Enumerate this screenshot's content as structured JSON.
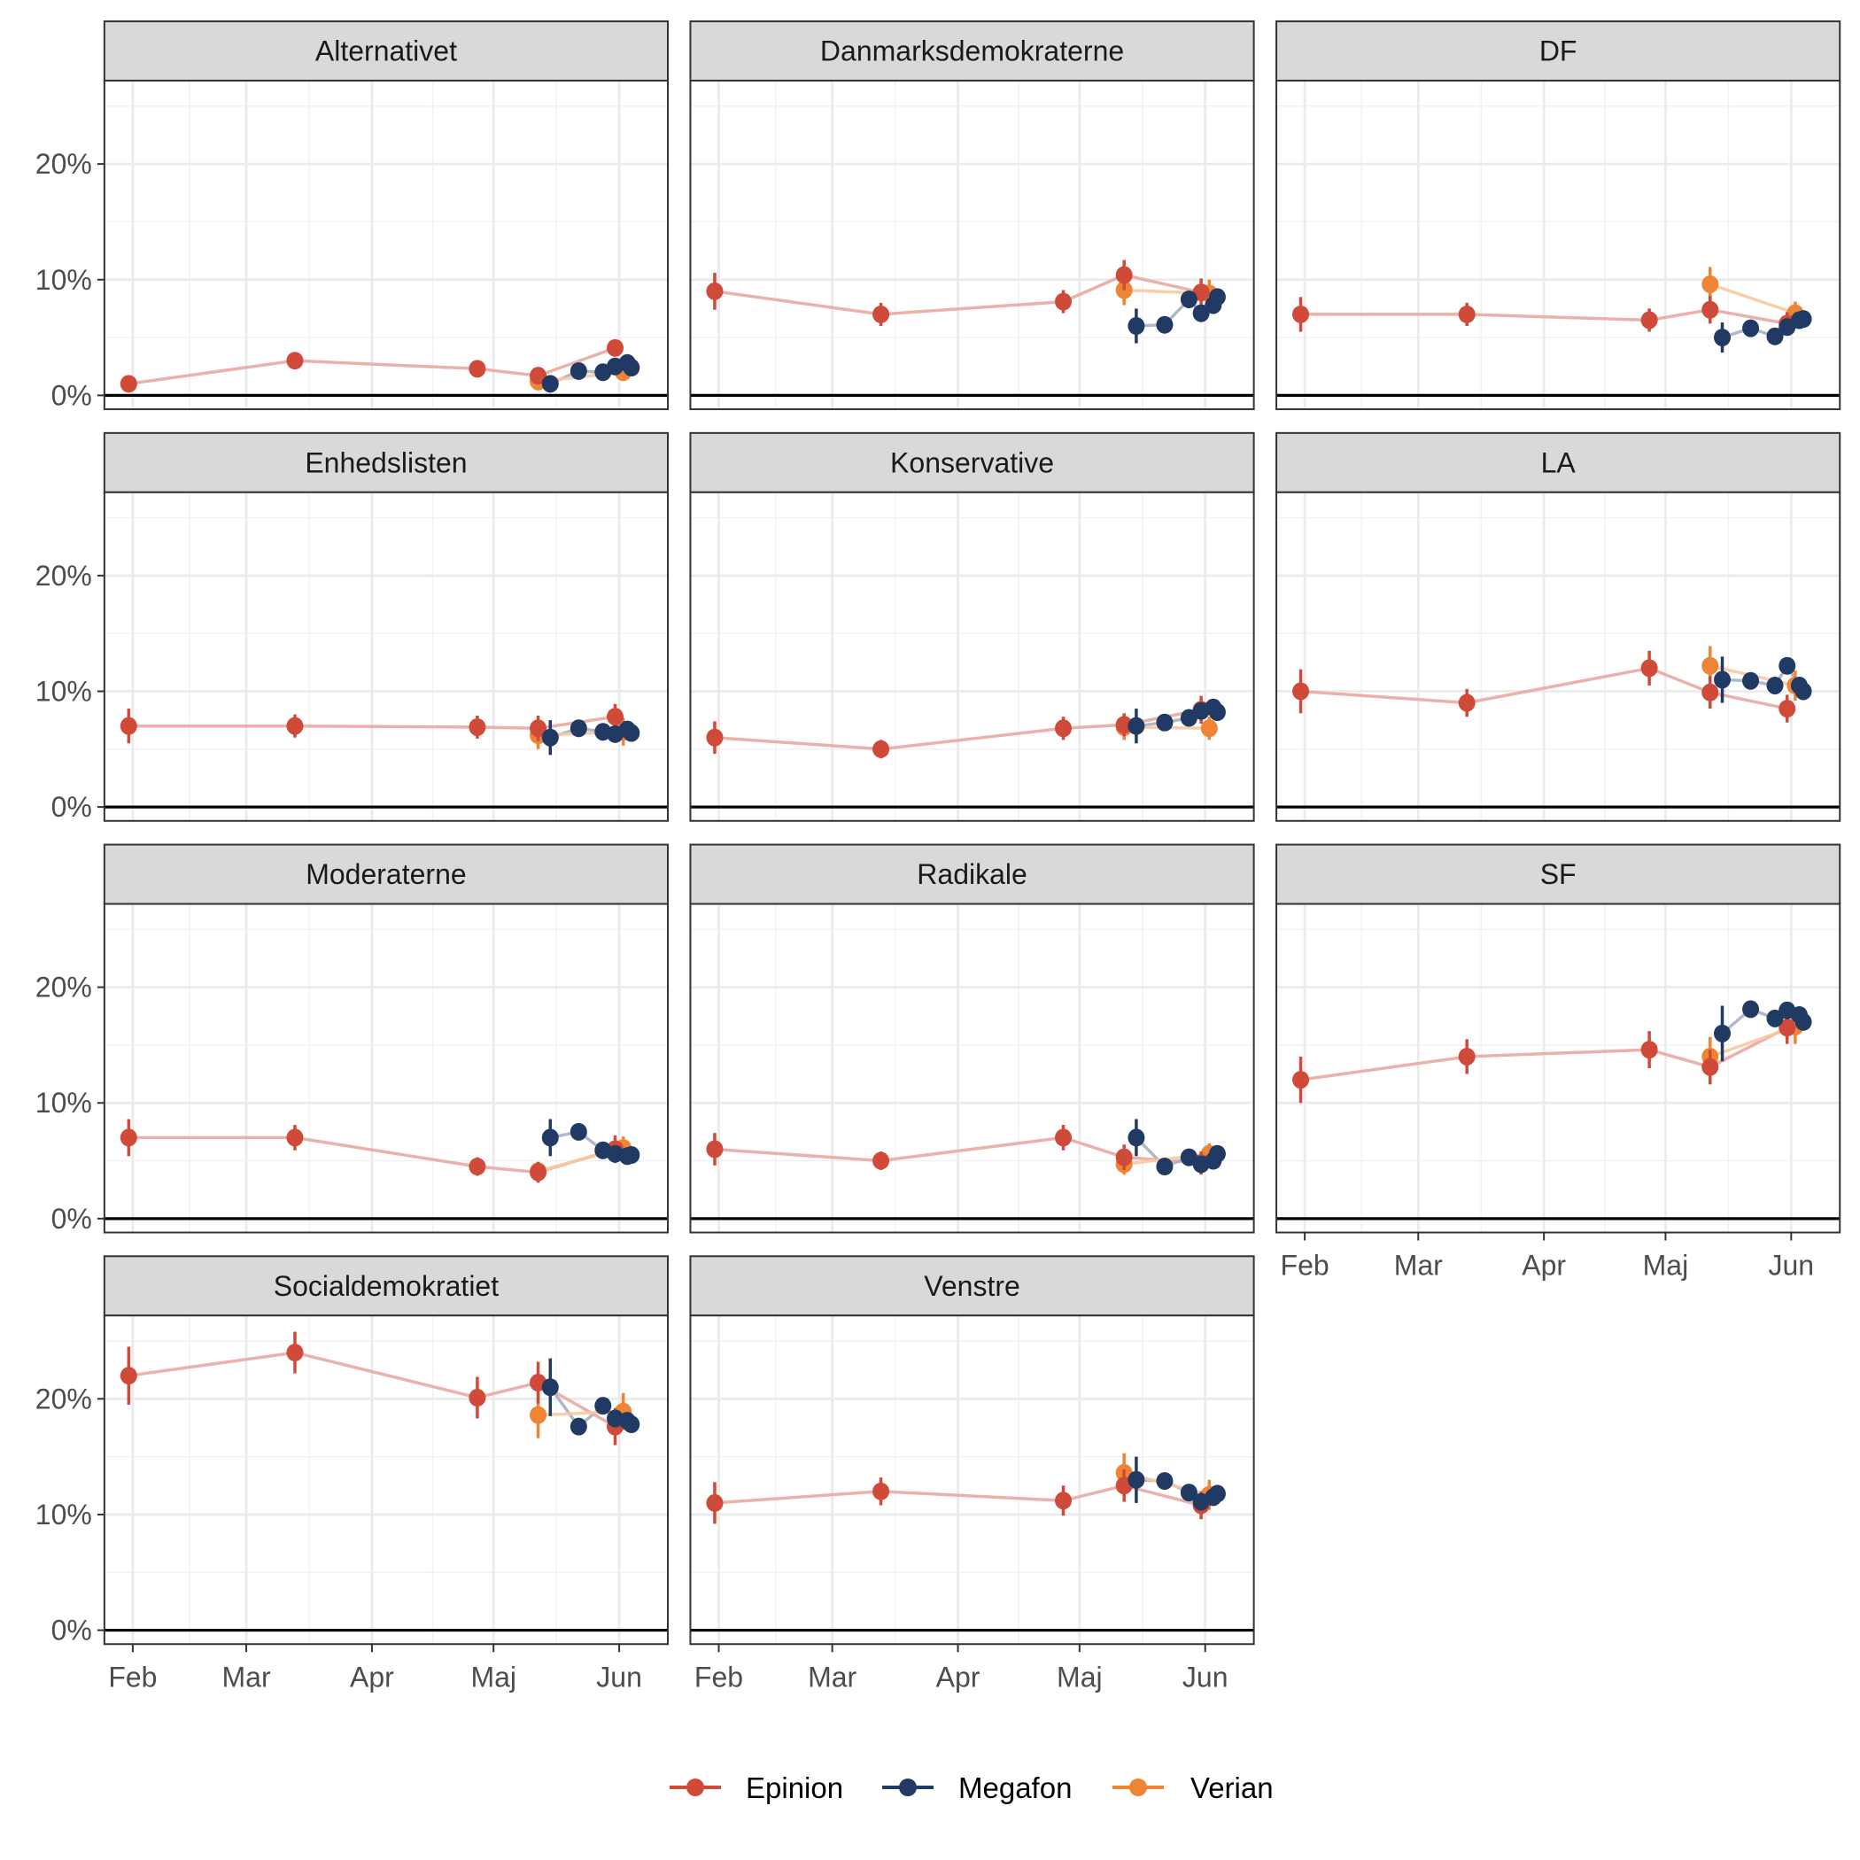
{
  "chart_data": {
    "type": "line",
    "title": "",
    "xlabel": "",
    "ylabel": "",
    "facet_layout": "3 columns, 4 rows, shared axes",
    "x_unit": "day of year",
    "xlim": [
      25,
      164
    ],
    "ylim": [
      -1.2,
      27.2
    ],
    "y_ticks": [
      {
        "value": 0,
        "label": "0%"
      },
      {
        "value": 10,
        "label": "10%"
      },
      {
        "value": 20,
        "label": "20%"
      }
    ],
    "x_ticks": [
      {
        "value": 32,
        "label": "Feb"
      },
      {
        "value": 60,
        "label": "Mar"
      },
      {
        "value": 91,
        "label": "Apr"
      },
      {
        "value": 121,
        "label": "Maj"
      },
      {
        "value": 152,
        "label": "Jun"
      }
    ],
    "grid": true,
    "reference_line": 0,
    "legend": {
      "position": "bottom",
      "entries": [
        {
          "name": "Epinion",
          "color": "#d04a3a"
        },
        {
          "name": "Megafon",
          "color": "#213a64"
        },
        {
          "name": "Verian",
          "color": "#ee8434"
        }
      ]
    },
    "panels": [
      {
        "name": "Alternativet",
        "series": {
          "Epinion": [
            [
              31,
              1.0,
              0.4
            ],
            [
              72,
              3.0,
              0.5
            ],
            [
              117,
              2.3,
              0.4
            ],
            [
              132,
              1.7,
              0.5
            ],
            [
              151,
              4.1,
              0.7
            ]
          ],
          "Megafon": [
            [
              135,
              1.0,
              0.4
            ],
            [
              142,
              2.1,
              0.4
            ],
            [
              148,
              2.0,
              0.4
            ],
            [
              151,
              2.5,
              0.4
            ],
            [
              154,
              2.8,
              0.4
            ],
            [
              155,
              2.4,
              0.4
            ]
          ],
          "Verian": [
            [
              132,
              1.2,
              0.4
            ],
            [
              153,
              2.0,
              0.5
            ]
          ]
        }
      },
      {
        "name": "Danmarksdemokraterne",
        "series": {
          "Epinion": [
            [
              31,
              9.0,
              1.6
            ],
            [
              72,
              7.0,
              1.0
            ],
            [
              117,
              8.1,
              1.0
            ],
            [
              132,
              10.4,
              1.3
            ],
            [
              151,
              8.9,
              1.2
            ]
          ],
          "Megafon": [
            [
              135,
              6.0,
              1.5
            ],
            [
              142,
              6.1,
              0.4
            ],
            [
              148,
              8.3,
              0.4
            ],
            [
              151,
              7.1,
              0.4
            ],
            [
              154,
              7.8,
              0.4
            ],
            [
              155,
              8.5,
              0.4
            ]
          ],
          "Verian": [
            [
              132,
              9.1,
              1.3
            ],
            [
              153,
              8.8,
              1.2
            ]
          ]
        }
      },
      {
        "name": "DF",
        "series": {
          "Epinion": [
            [
              31,
              7.0,
              1.5
            ],
            [
              72,
              7.0,
              1.0
            ],
            [
              117,
              6.5,
              1.0
            ],
            [
              132,
              7.4,
              1.2
            ],
            [
              151,
              6.2,
              1.0
            ]
          ],
          "Megafon": [
            [
              135,
              5.0,
              1.3
            ],
            [
              142,
              5.8,
              0.4
            ],
            [
              148,
              5.1,
              0.4
            ],
            [
              151,
              5.9,
              0.4
            ],
            [
              154,
              6.5,
              0.4
            ],
            [
              155,
              6.6,
              0.4
            ]
          ],
          "Verian": [
            [
              132,
              9.6,
              1.5
            ],
            [
              153,
              7.1,
              1.0
            ]
          ]
        }
      },
      {
        "name": "Enhedslisten",
        "series": {
          "Epinion": [
            [
              31,
              7.0,
              1.5
            ],
            [
              72,
              7.0,
              1.0
            ],
            [
              117,
              6.9,
              1.0
            ],
            [
              132,
              6.8,
              1.1
            ],
            [
              151,
              7.8,
              1.1
            ]
          ],
          "Megafon": [
            [
              135,
              6.0,
              1.5
            ],
            [
              142,
              6.8,
              0.4
            ],
            [
              148,
              6.5,
              0.4
            ],
            [
              151,
              6.3,
              0.4
            ],
            [
              154,
              6.7,
              0.4
            ],
            [
              155,
              6.4,
              0.4
            ]
          ],
          "Verian": [
            [
              132,
              6.2,
              1.2
            ],
            [
              153,
              6.5,
              1.2
            ]
          ]
        }
      },
      {
        "name": "Konservative",
        "series": {
          "Epinion": [
            [
              31,
              6.0,
              1.4
            ],
            [
              72,
              5.0,
              0.8
            ],
            [
              117,
              6.8,
              1.0
            ],
            [
              132,
              7.1,
              1.0
            ],
            [
              151,
              8.4,
              1.2
            ]
          ],
          "Megafon": [
            [
              135,
              7.0,
              1.5
            ],
            [
              142,
              7.3,
              0.4
            ],
            [
              148,
              7.7,
              0.4
            ],
            [
              151,
              8.3,
              0.4
            ],
            [
              154,
              8.6,
              0.4
            ],
            [
              155,
              8.2,
              0.4
            ]
          ],
          "Verian": [
            [
              132,
              6.9,
              1.1
            ],
            [
              153,
              6.8,
              1.0
            ]
          ]
        }
      },
      {
        "name": "LA",
        "series": {
          "Epinion": [
            [
              31,
              10.0,
              1.9
            ],
            [
              72,
              9.0,
              1.2
            ],
            [
              117,
              12.0,
              1.5
            ],
            [
              132,
              9.9,
              1.4
            ],
            [
              151,
              8.5,
              1.2
            ]
          ],
          "Megafon": [
            [
              135,
              11.0,
              2.0
            ],
            [
              142,
              10.9,
              0.4
            ],
            [
              148,
              10.5,
              0.4
            ],
            [
              151,
              12.2,
              0.4
            ],
            [
              154,
              10.5,
              0.4
            ],
            [
              155,
              10.0,
              0.4
            ]
          ],
          "Verian": [
            [
              132,
              12.2,
              1.7
            ],
            [
              153,
              10.5,
              1.3
            ]
          ]
        }
      },
      {
        "name": "Moderaterne",
        "series": {
          "Epinion": [
            [
              31,
              7.0,
              1.6
            ],
            [
              72,
              7.0,
              1.1
            ],
            [
              117,
              4.5,
              0.8
            ],
            [
              132,
              4.0,
              0.9
            ],
            [
              151,
              6.0,
              1.2
            ]
          ],
          "Megafon": [
            [
              135,
              7.0,
              1.6
            ],
            [
              142,
              7.5,
              0.4
            ],
            [
              148,
              5.9,
              0.4
            ],
            [
              151,
              5.6,
              0.4
            ],
            [
              154,
              5.4,
              0.4
            ],
            [
              155,
              5.5,
              0.4
            ]
          ],
          "Verian": [
            [
              132,
              4.1,
              0.8
            ],
            [
              153,
              6.1,
              1.0
            ]
          ]
        }
      },
      {
        "name": "Radikale",
        "series": {
          "Epinion": [
            [
              31,
              6.0,
              1.4
            ],
            [
              72,
              5.0,
              0.8
            ],
            [
              117,
              7.0,
              1.1
            ],
            [
              132,
              5.3,
              1.1
            ],
            [
              151,
              4.8,
              1.0
            ]
          ],
          "Megafon": [
            [
              135,
              7.0,
              1.6
            ],
            [
              142,
              4.5,
              0.4
            ],
            [
              148,
              5.3,
              0.4
            ],
            [
              151,
              4.7,
              0.4
            ],
            [
              154,
              5.0,
              0.4
            ],
            [
              155,
              5.6,
              0.4
            ]
          ],
          "Verian": [
            [
              132,
              4.7,
              0.9
            ],
            [
              153,
              5.6,
              0.9
            ]
          ]
        }
      },
      {
        "name": "SF",
        "series": {
          "Epinion": [
            [
              31,
              12.0,
              2.0
            ],
            [
              72,
              14.0,
              1.5
            ],
            [
              117,
              14.6,
              1.6
            ],
            [
              132,
              13.1,
              1.5
            ],
            [
              151,
              16.5,
              1.4
            ]
          ],
          "Megafon": [
            [
              135,
              16.0,
              2.4
            ],
            [
              142,
              18.1,
              0.4
            ],
            [
              148,
              17.3,
              0.4
            ],
            [
              151,
              18.0,
              0.4
            ],
            [
              154,
              17.6,
              0.4
            ],
            [
              155,
              17.0,
              0.4
            ]
          ],
          "Verian": [
            [
              132,
              14.0,
              1.7
            ],
            [
              153,
              16.6,
              1.5
            ]
          ]
        }
      },
      {
        "name": "Socialdemokratiet",
        "series": {
          "Epinion": [
            [
              31,
              22.0,
              2.5
            ],
            [
              72,
              24.0,
              1.8
            ],
            [
              117,
              20.1,
              1.8
            ],
            [
              132,
              21.4,
              1.8
            ],
            [
              151,
              17.6,
              1.6
            ]
          ],
          "Megafon": [
            [
              135,
              21.0,
              2.5
            ],
            [
              142,
              17.6,
              0.4
            ],
            [
              148,
              19.4,
              0.4
            ],
            [
              151,
              18.3,
              0.4
            ],
            [
              154,
              18.1,
              0.4
            ],
            [
              155,
              17.8,
              0.4
            ]
          ],
          "Verian": [
            [
              132,
              18.6,
              2.0
            ],
            [
              153,
              18.9,
              1.6
            ]
          ]
        }
      },
      {
        "name": "Venstre",
        "series": {
          "Epinion": [
            [
              31,
              11.0,
              1.8
            ],
            [
              72,
              12.0,
              1.2
            ],
            [
              117,
              11.2,
              1.3
            ],
            [
              132,
              12.5,
              1.4
            ],
            [
              151,
              10.8,
              1.2
            ]
          ],
          "Megafon": [
            [
              135,
              13.0,
              2.0
            ],
            [
              142,
              12.9,
              0.4
            ],
            [
              148,
              11.9,
              0.4
            ],
            [
              151,
              11.1,
              0.4
            ],
            [
              154,
              11.5,
              0.4
            ],
            [
              155,
              11.8,
              0.4
            ]
          ],
          "Verian": [
            [
              132,
              13.6,
              1.7
            ],
            [
              153,
              11.7,
              1.3
            ]
          ]
        }
      }
    ]
  }
}
